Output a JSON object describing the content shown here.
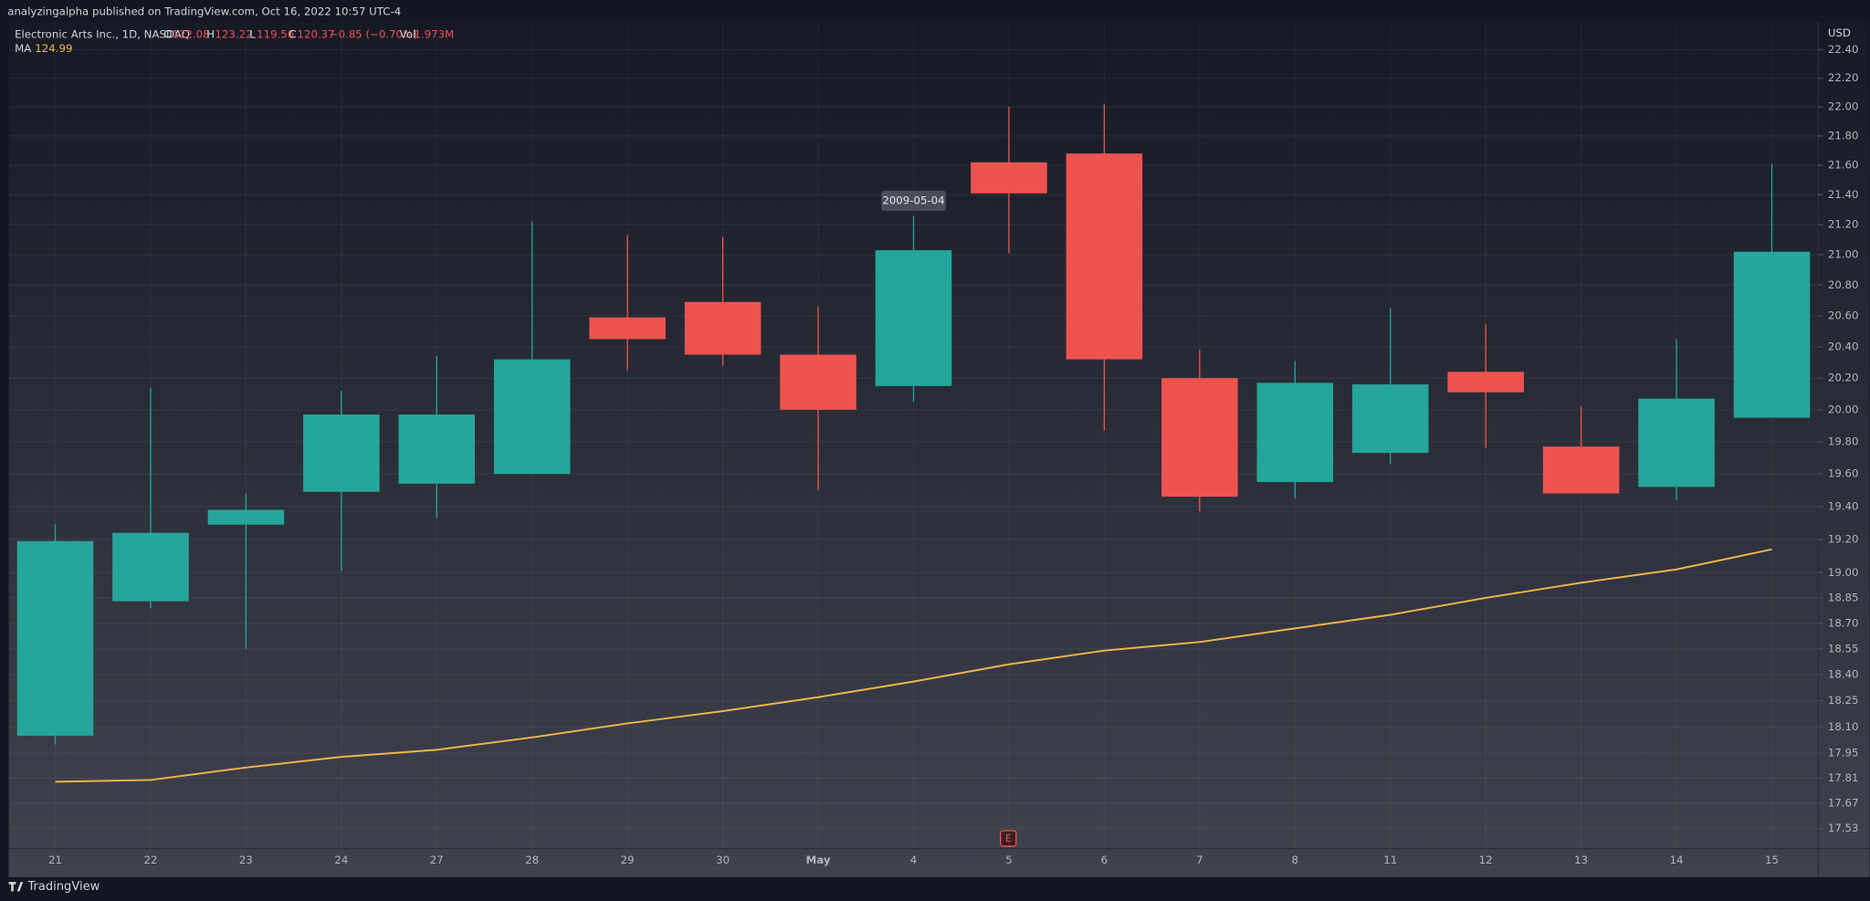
{
  "header": {
    "publisher": "analyzingalpha published on TradingView.com, Oct 16, 2022 10:57 UTC-4",
    "symbol": "Electronic Arts Inc., 1D, NASDAQ",
    "o_label": "O",
    "o_value": "122.08",
    "h_label": "H",
    "h_value": "123.22",
    "l_label": "L",
    "l_value": "119.56",
    "c_label": "C",
    "c_value": "120.37",
    "change": "−0.85 (−0.70%)",
    "vol_label": "Vol",
    "vol_value": "1.973M",
    "ma_label": "MA",
    "ma_value": "124.99",
    "currency": "USD",
    "footer": "TradingView",
    "earnings_marker": "E"
  },
  "chart_data": {
    "type": "candlestick",
    "categories": [
      "21",
      "22",
      "23",
      "24",
      "27",
      "28",
      "29",
      "30",
      "May",
      "4",
      "5",
      "6",
      "7",
      "8",
      "11",
      "12",
      "13",
      "14",
      "15"
    ],
    "open": [
      18.05,
      18.83,
      19.29,
      19.49,
      19.54,
      19.6,
      20.59,
      20.69,
      20.35,
      20.15,
      21.62,
      21.68,
      20.2,
      19.55,
      19.73,
      20.24,
      19.77,
      19.52,
      19.95
    ],
    "high": [
      19.29,
      20.14,
      19.48,
      20.12,
      20.34,
      21.22,
      21.13,
      21.12,
      20.66,
      21.26,
      22.0,
      22.02,
      20.38,
      20.31,
      20.65,
      20.55,
      20.02,
      20.45,
      21.61
    ],
    "low": [
      18.0,
      18.79,
      18.55,
      19.01,
      19.33,
      19.6,
      20.25,
      20.28,
      19.5,
      20.05,
      21.01,
      19.87,
      19.37,
      19.45,
      19.66,
      19.76,
      19.48,
      19.44,
      19.95
    ],
    "close": [
      19.19,
      19.24,
      19.38,
      19.97,
      19.97,
      20.32,
      20.45,
      20.35,
      20.0,
      21.03,
      21.41,
      20.32,
      19.46,
      20.17,
      20.16,
      20.11,
      19.48,
      20.07,
      21.02
    ],
    "up_color": "#26a69a",
    "down_color": "#ef5350",
    "ma": {
      "name": "MA",
      "color": "#f0b64a",
      "values": [
        17.79,
        17.8,
        17.87,
        17.93,
        17.97,
        18.04,
        18.12,
        18.19,
        18.27,
        18.36,
        18.46,
        18.54,
        18.59,
        18.67,
        18.75,
        18.85,
        18.94,
        19.02,
        19.14
      ]
    },
    "annotation": {
      "text": "2009-05-04",
      "index": 9
    },
    "log_scale": true,
    "grid": true,
    "ylim": [
      17.42,
      22.6
    ],
    "yticks": [
      {
        "value": 22.4,
        "label": "22.40"
      },
      {
        "value": 22.2,
        "label": "22.20"
      },
      {
        "value": 22,
        "label": "22.00"
      },
      {
        "value": 21.8,
        "label": "21.80"
      },
      {
        "value": 21.6,
        "label": "21.60"
      },
      {
        "value": 21.4,
        "label": "21.40"
      },
      {
        "value": 21.2,
        "label": "21.20"
      },
      {
        "value": 21,
        "label": "21.00"
      },
      {
        "value": 20.8,
        "label": "20.80"
      },
      {
        "value": 20.6,
        "label": "20.60"
      },
      {
        "value": 20.4,
        "label": "20.40"
      },
      {
        "value": 20.2,
        "label": "20.20"
      },
      {
        "value": 20,
        "label": "20.00"
      },
      {
        "value": 19.8,
        "label": "19.80"
      },
      {
        "value": 19.6,
        "label": "19.60"
      },
      {
        "value": 19.4,
        "label": "19.40"
      },
      {
        "value": 19.2,
        "label": "19.20"
      },
      {
        "value": 19,
        "label": "19.00"
      },
      18.85,
      {
        "value": 18.7,
        "label": "18.70"
      },
      18.55,
      {
        "value": 18.4,
        "label": "18.40"
      },
      18.25,
      {
        "value": 18.1,
        "label": "18.10"
      },
      17.95,
      17.81,
      17.67,
      17.53
    ]
  }
}
